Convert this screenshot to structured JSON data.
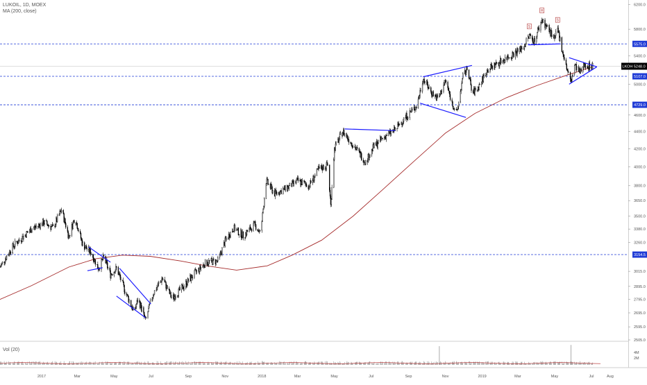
{
  "header": {
    "symbol_line": "LUKOIL, 1D, MOEX",
    "indicator_line": "MA (200, close)",
    "volume_label": "Vol (20)"
  },
  "colors": {
    "candle": "#000000",
    "ma": "#a52a2a",
    "trendline": "#1a1aff",
    "level": "#1f3bd6",
    "price_tag": "#1f3bd6",
    "last_price_tag": "#000000",
    "volume": "#888888",
    "volume_ma": "#b22222",
    "grid": "#e6e6e6",
    "marker": "#b03030"
  },
  "chart_data": {
    "type": "candlestick",
    "title": "LUKOIL, 1D, MOEX",
    "y_axis": {
      "scale": "log",
      "ticks": [
        "6200.0",
        "5800.0",
        "5400.0",
        "5000.0",
        "4600.0",
        "4400.0",
        "4200.0",
        "4000.0",
        "3800.0",
        "3650.0",
        "3500.0",
        "3380.0",
        "3260.0",
        "3015.0",
        "2895.0",
        "2795.0",
        "2695.0",
        "2595.0",
        "2505.0"
      ],
      "range": [
        2505,
        6230
      ]
    },
    "x_axis": {
      "labels": [
        "2017",
        "Mar",
        "May",
        "Jul",
        "Sep",
        "Nov",
        "2018",
        "Mar",
        "May",
        "Jul",
        "Sep",
        "Nov",
        "2019",
        "Mar",
        "May",
        "Jul",
        "Aug"
      ],
      "range": [
        "2016-10-24",
        "2019-08-31"
      ]
    },
    "price_path": [
      [
        "2016-10-24",
        3050
      ],
      [
        "2016-11-15",
        3230
      ],
      [
        "2016-12-15",
        3380
      ],
      [
        "2017-01-05",
        3440
      ],
      [
        "2017-01-20",
        3390
      ],
      [
        "2017-02-03",
        3560
      ],
      [
        "2017-02-15",
        3310
      ],
      [
        "2017-02-25",
        3490
      ],
      [
        "2017-03-10",
        3240
      ],
      [
        "2017-03-24",
        3170
      ],
      [
        "2017-04-05",
        3040
      ],
      [
        "2017-04-14",
        3130
      ],
      [
        "2017-04-25",
        2990
      ],
      [
        "2017-05-05",
        3040
      ],
      [
        "2017-05-20",
        2850
      ],
      [
        "2017-06-03",
        2700
      ],
      [
        "2017-06-10",
        2800
      ],
      [
        "2017-06-22",
        2640
      ],
      [
        "2017-07-05",
        2840
      ],
      [
        "2017-07-20",
        2960
      ],
      [
        "2017-08-05",
        2800
      ],
      [
        "2017-08-25",
        2900
      ],
      [
        "2017-09-12",
        3000
      ],
      [
        "2017-10-01",
        3090
      ],
      [
        "2017-10-20",
        3100
      ],
      [
        "2017-11-01",
        3270
      ],
      [
        "2017-11-15",
        3390
      ],
      [
        "2017-12-01",
        3320
      ],
      [
        "2017-12-20",
        3420
      ],
      [
        "2017-12-30",
        3340
      ],
      [
        "2018-01-08",
        3850
      ],
      [
        "2018-01-22",
        3720
      ],
      [
        "2018-02-10",
        3770
      ],
      [
        "2018-03-01",
        3850
      ],
      [
        "2018-03-20",
        3800
      ],
      [
        "2018-04-05",
        3970
      ],
      [
        "2018-04-20",
        4020
      ],
      [
        "2018-04-25",
        3600
      ],
      [
        "2018-05-01",
        4200
      ],
      [
        "2018-05-15",
        4400
      ],
      [
        "2018-05-28",
        4280
      ],
      [
        "2018-06-10",
        4160
      ],
      [
        "2018-06-22",
        4050
      ],
      [
        "2018-07-05",
        4220
      ],
      [
        "2018-07-25",
        4350
      ],
      [
        "2018-08-10",
        4420
      ],
      [
        "2018-08-25",
        4560
      ],
      [
        "2018-09-05",
        4640
      ],
      [
        "2018-09-15",
        4720
      ],
      [
        "2018-09-25",
        5080
      ],
      [
        "2018-10-08",
        4900
      ],
      [
        "2018-10-20",
        4800
      ],
      [
        "2018-11-01",
        5050
      ],
      [
        "2018-11-12",
        4750
      ],
      [
        "2018-11-20",
        4620
      ],
      [
        "2018-11-30",
        5100
      ],
      [
        "2018-12-08",
        5230
      ],
      [
        "2018-12-15",
        4870
      ],
      [
        "2018-12-25",
        4950
      ],
      [
        "2019-01-10",
        5200
      ],
      [
        "2019-02-01",
        5320
      ],
      [
        "2019-02-20",
        5420
      ],
      [
        "2019-03-10",
        5520
      ],
      [
        "2019-03-20",
        5700
      ],
      [
        "2019-03-28",
        5620
      ],
      [
        "2019-04-10",
        5950
      ],
      [
        "2019-04-22",
        5780
      ],
      [
        "2019-05-01",
        5640
      ],
      [
        "2019-05-06",
        5800
      ],
      [
        "2019-05-12",
        5550
      ],
      [
        "2019-05-20",
        5250
      ],
      [
        "2019-05-28",
        5020
      ],
      [
        "2019-06-03",
        5260
      ],
      [
        "2019-06-12",
        5150
      ],
      [
        "2019-06-20",
        5280
      ],
      [
        "2019-06-27",
        5250
      ],
      [
        "2019-07-03",
        5248
      ]
    ],
    "ma_path": [
      [
        "2016-10-24",
        2795
      ],
      [
        "2016-12-15",
        2900
      ],
      [
        "2017-02-15",
        3050
      ],
      [
        "2017-04-01",
        3120
      ],
      [
        "2017-05-15",
        3150
      ],
      [
        "2017-06-30",
        3140
      ],
      [
        "2017-08-20",
        3100
      ],
      [
        "2017-10-01",
        3060
      ],
      [
        "2017-11-20",
        3025
      ],
      [
        "2018-01-10",
        3060
      ],
      [
        "2018-02-20",
        3150
      ],
      [
        "2018-04-10",
        3280
      ],
      [
        "2018-06-01",
        3500
      ],
      [
        "2018-07-20",
        3760
      ],
      [
        "2018-09-10",
        4060
      ],
      [
        "2018-11-01",
        4380
      ],
      [
        "2018-12-20",
        4620
      ],
      [
        "2019-02-10",
        4820
      ],
      [
        "2019-04-01",
        4980
      ],
      [
        "2019-05-20",
        5120
      ],
      [
        "2019-07-03",
        5240
      ]
    ],
    "levels": [
      {
        "label": "5575.0",
        "value": 5575
      },
      {
        "label": "5107.0",
        "value": 5107
      },
      {
        "label": "4729.0",
        "value": 4729
      },
      {
        "label": "3154.5",
        "value": 3154.5
      }
    ],
    "last_price": {
      "symbol": "LKOH",
      "value": "5248.0"
    },
    "head_and_shoulders": [
      {
        "label": "S",
        "date": "2019-03-20",
        "value": 5700
      },
      {
        "label": "H",
        "date": "2019-04-10",
        "value": 5950
      },
      {
        "label": "S",
        "date": "2019-05-06",
        "value": 5800
      }
    ],
    "trendlines": [
      [
        [
          "2017-03-20",
          3220
        ],
        [
          "2017-04-25",
          3090
        ]
      ],
      [
        [
          "2017-03-18",
          3020
        ],
        [
          "2017-04-12",
          3045
        ]
      ],
      [
        [
          "2017-05-10",
          3040
        ],
        [
          "2017-07-01",
          2760
        ]
      ],
      [
        [
          "2017-05-05",
          2820
        ],
        [
          "2017-06-22",
          2660
        ]
      ],
      [
        [
          "2018-05-18",
          4430
        ],
        [
          "2018-08-10",
          4410
        ]
      ],
      [
        [
          "2018-09-25",
          5100
        ],
        [
          "2018-12-15",
          5260
        ]
      ],
      [
        [
          "2018-09-20",
          4750
        ],
        [
          "2018-12-05",
          4570
        ]
      ],
      [
        [
          "2019-03-18",
          5560
        ],
        [
          "2019-05-10",
          5575
        ]
      ],
      [
        [
          "2019-05-25",
          5370
        ],
        [
          "2019-07-10",
          5240
        ]
      ],
      [
        [
          "2019-05-25",
          5000
        ],
        [
          "2019-07-10",
          5240
        ]
      ]
    ],
    "volume": {
      "label": "Vol (20)",
      "ticks": [
        "4M",
        "2M"
      ],
      "spikes": [
        [
          "2018-10-22",
          4.5
        ],
        [
          "2019-05-28",
          4.8
        ]
      ]
    }
  }
}
